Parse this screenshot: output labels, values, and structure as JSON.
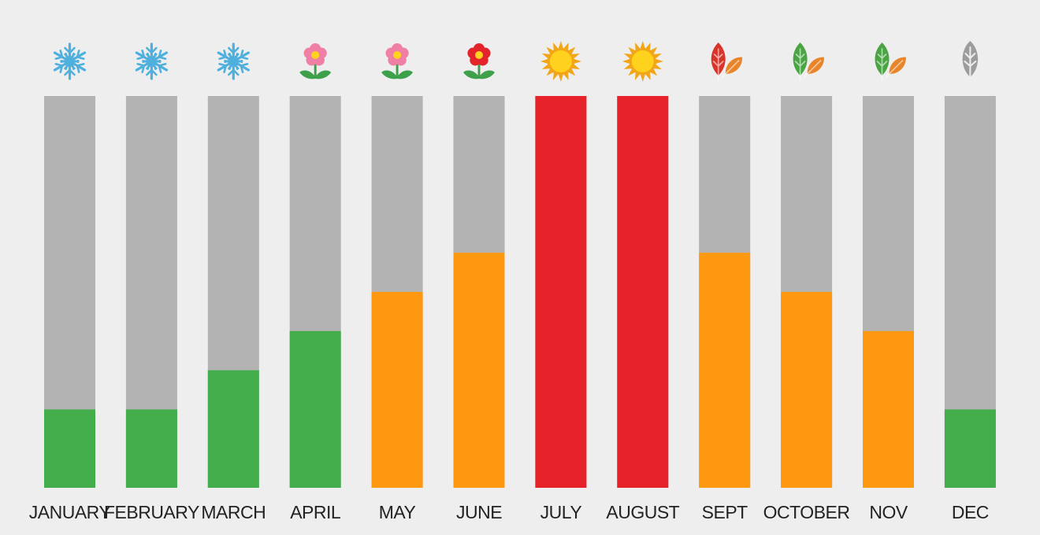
{
  "chart_data": {
    "type": "bar",
    "stacked": false,
    "categories": [
      "JANUARY",
      "FEBRUARY",
      "MARCH",
      "APRIL",
      "MAY",
      "JUNE",
      "JULY",
      "AUGUST",
      "SEPT",
      "OCTOBER",
      "NOV",
      "DEC"
    ],
    "values": [
      20,
      20,
      30,
      40,
      50,
      60,
      100,
      100,
      60,
      50,
      40,
      20
    ],
    "ylim": [
      0,
      100
    ],
    "level_colors": [
      "#43ad4b",
      "#43ad4b",
      "#43ad4b",
      "#43ad4b",
      "#ff9811",
      "#ff9811",
      "#e8222a",
      "#e8222a",
      "#ff9811",
      "#ff9811",
      "#ff9811",
      "#43ad4b"
    ],
    "track_color": "#b3b3b3",
    "season_icons": [
      "snowflake-icon",
      "snowflake-icon",
      "snowflake-icon",
      "pink-flower-icon",
      "pink-flower-icon",
      "red-flower-icon",
      "sun-icon",
      "sun-icon",
      "red-autumn-leaves-icon",
      "green-orange-leaves-icon",
      "green-orange-leaves-icon",
      "gray-leaf-icon"
    ],
    "grid": false,
    "legend": "none"
  }
}
